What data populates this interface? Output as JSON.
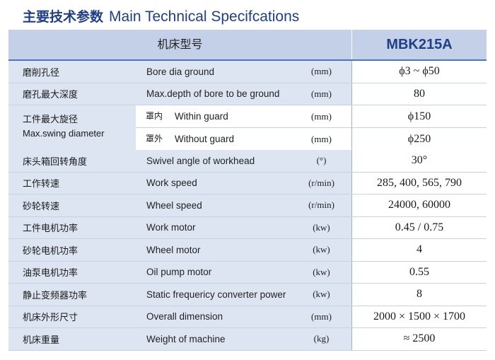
{
  "title": {
    "cn": "主要技术参数",
    "en": "Main Technical Specifcations"
  },
  "header": {
    "model_label": "机床型号",
    "model_value": "MBK215A"
  },
  "swing": {
    "cn": "工件最大旋径",
    "en": "Max.swing diameter",
    "within": {
      "cn": "罩内",
      "en": "Within guard",
      "unit": "(mm)",
      "value": "ϕ150"
    },
    "without": {
      "cn": "罩外",
      "en": "Without guard",
      "unit": "(mm)",
      "value": "ϕ250"
    }
  },
  "rows": [
    {
      "cn": "磨削孔径",
      "en": "Bore dia ground",
      "unit": "(mm)",
      "value": "ϕ3 ~ ϕ50"
    },
    {
      "cn": "磨孔最大深度",
      "en": "Max.depth of bore to be ground",
      "unit": "(mm)",
      "value": "80"
    },
    {
      "cn": "床头箱回转角度",
      "en": "Swivel angle of workhead",
      "unit": "(°)",
      "value": "30°"
    },
    {
      "cn": "工作转速",
      "en": "Work speed",
      "unit": "(r/min)",
      "value": "285, 400, 565, 790"
    },
    {
      "cn": "砂轮转速",
      "en": "Wheel speed",
      "unit": "(r/min)",
      "value": "24000, 60000"
    },
    {
      "cn": "工件电机功率",
      "en": "Work motor",
      "unit": "(kw)",
      "value": "0.45 / 0.75"
    },
    {
      "cn": "砂轮电机功率",
      "en": "Wheel motor",
      "unit": "(kw)",
      "value": "4"
    },
    {
      "cn": "油泵电机功率",
      "en": "Oil pump motor",
      "unit": "(kw)",
      "value": "0.55"
    },
    {
      "cn": "静止变频器功率",
      "en": "Static frequericy converter power",
      "unit": "(kw)",
      "value": "8"
    },
    {
      "cn": "机床外形尺寸",
      "en": "Overall dimension",
      "unit": "(mm)",
      "value": "2000 × 1500 × 1700"
    },
    {
      "cn": "机床重量",
      "en": "Weight of machine",
      "unit": "(kg)",
      "value": "≈ 2500"
    }
  ]
}
